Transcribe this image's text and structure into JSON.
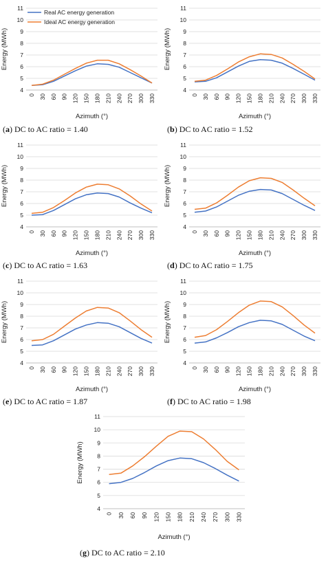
{
  "colors": {
    "real": "#4472C4",
    "ideal": "#ED7D31",
    "grid": "#D9D9D9"
  },
  "chart_data": [
    {
      "id": "a",
      "caption_letter": "a",
      "caption_text": " DC to AC ratio = 1.40",
      "type": "line",
      "xlabel": "Azimuth (°)",
      "ylabel": "Energy (MWh)",
      "x": [
        0,
        30,
        60,
        90,
        120,
        150,
        180,
        210,
        240,
        270,
        300,
        330
      ],
      "ylim": [
        4,
        11
      ],
      "yticks": [
        4,
        5,
        6,
        7,
        8,
        9,
        10,
        11
      ],
      "grid": true,
      "legend": "top-left",
      "series": [
        {
          "name": "Real AC energy generation",
          "values": [
            4.4,
            4.45,
            4.75,
            5.2,
            5.65,
            6.05,
            6.25,
            6.2,
            5.95,
            5.5,
            5.05,
            4.6
          ]
        },
        {
          "name": "Ideal AC energy generation",
          "values": [
            4.4,
            4.5,
            4.85,
            5.35,
            5.85,
            6.3,
            6.55,
            6.55,
            6.25,
            5.75,
            5.2,
            4.6
          ]
        }
      ]
    },
    {
      "id": "b",
      "caption_letter": "b",
      "caption_text": " DC to AC ratio = 1.52",
      "type": "line",
      "xlabel": "Azimuth (°)",
      "ylabel": "Energy (MWh)",
      "x": [
        0,
        30,
        60,
        90,
        120,
        150,
        180,
        210,
        240,
        270,
        300,
        330
      ],
      "ylim": [
        4,
        11
      ],
      "yticks": [
        4,
        5,
        6,
        7,
        8,
        9,
        10,
        11
      ],
      "grid": true,
      "legend": "none",
      "series": [
        {
          "name": "Real AC energy generation",
          "values": [
            4.7,
            4.75,
            5.05,
            5.55,
            6.05,
            6.45,
            6.6,
            6.55,
            6.3,
            5.85,
            5.35,
            4.85
          ]
        },
        {
          "name": "Ideal AC energy generation",
          "values": [
            4.75,
            4.85,
            5.25,
            5.8,
            6.4,
            6.85,
            7.1,
            7.05,
            6.75,
            6.2,
            5.6,
            4.95
          ]
        }
      ]
    },
    {
      "id": "c",
      "caption_letter": "c",
      "caption_text": " DC to AC ratio = 1.63",
      "type": "line",
      "xlabel": "Azimuth (°)",
      "ylabel": "Energy (MWh)",
      "x": [
        0,
        30,
        60,
        90,
        120,
        150,
        180,
        210,
        240,
        270,
        300,
        330
      ],
      "ylim": [
        4,
        11
      ],
      "yticks": [
        4,
        5,
        6,
        7,
        8,
        9,
        10,
        11
      ],
      "grid": true,
      "legend": "none",
      "series": [
        {
          "name": "Real AC energy generation",
          "values": [
            5.0,
            5.05,
            5.4,
            5.9,
            6.4,
            6.75,
            6.9,
            6.85,
            6.55,
            6.05,
            5.6,
            5.2
          ]
        },
        {
          "name": "Ideal AC energy generation",
          "values": [
            5.15,
            5.25,
            5.65,
            6.25,
            6.9,
            7.4,
            7.65,
            7.6,
            7.25,
            6.65,
            5.95,
            5.35
          ]
        }
      ]
    },
    {
      "id": "d",
      "caption_letter": "d",
      "caption_text": " DC to AC ratio = 1.75",
      "type": "line",
      "xlabel": "Azimuth (°)",
      "ylabel": "Energy (MWh)",
      "x": [
        0,
        30,
        60,
        90,
        120,
        150,
        180,
        210,
        240,
        270,
        300,
        330
      ],
      "ylim": [
        4,
        11
      ],
      "yticks": [
        4,
        5,
        6,
        7,
        8,
        9,
        10,
        11
      ],
      "grid": true,
      "legend": "none",
      "series": [
        {
          "name": "Real AC energy generation",
          "values": [
            5.25,
            5.35,
            5.7,
            6.2,
            6.7,
            7.05,
            7.2,
            7.15,
            6.85,
            6.35,
            5.85,
            5.4
          ]
        },
        {
          "name": "Ideal AC energy generation",
          "values": [
            5.5,
            5.6,
            6.05,
            6.7,
            7.4,
            7.95,
            8.2,
            8.15,
            7.8,
            7.15,
            6.45,
            5.8
          ]
        }
      ]
    },
    {
      "id": "e",
      "caption_letter": "e",
      "caption_text": " DC to AC ratio = 1.87",
      "type": "line",
      "xlabel": "Azimuth (°)",
      "ylabel": "Energy (MWh)",
      "x": [
        0,
        30,
        60,
        90,
        120,
        150,
        180,
        210,
        240,
        270,
        300,
        330
      ],
      "ylim": [
        4,
        11
      ],
      "yticks": [
        4,
        5,
        6,
        7,
        8,
        9,
        10,
        11
      ],
      "grid": true,
      "legend": "none",
      "series": [
        {
          "name": "Real AC energy generation",
          "values": [
            5.5,
            5.55,
            5.9,
            6.4,
            6.9,
            7.25,
            7.45,
            7.4,
            7.1,
            6.6,
            6.1,
            5.7
          ]
        },
        {
          "name": "Ideal AC energy generation",
          "values": [
            5.9,
            6.0,
            6.45,
            7.15,
            7.85,
            8.45,
            8.75,
            8.7,
            8.3,
            7.6,
            6.85,
            6.2
          ]
        }
      ]
    },
    {
      "id": "f",
      "caption_letter": "f",
      "caption_text": " DC to AC ratio = 1.98",
      "type": "line",
      "xlabel": "Azimuth (°)",
      "ylabel": "Energy (MWh)",
      "x": [
        0,
        30,
        60,
        90,
        120,
        150,
        180,
        210,
        240,
        270,
        300,
        330
      ],
      "ylim": [
        4,
        11
      ],
      "yticks": [
        4,
        5,
        6,
        7,
        8,
        9,
        10,
        11
      ],
      "grid": true,
      "legend": "none",
      "series": [
        {
          "name": "Real AC energy generation",
          "values": [
            5.7,
            5.8,
            6.15,
            6.6,
            7.1,
            7.45,
            7.65,
            7.6,
            7.3,
            6.8,
            6.3,
            5.9
          ]
        },
        {
          "name": "Ideal AC energy generation",
          "values": [
            6.2,
            6.35,
            6.85,
            7.55,
            8.3,
            8.95,
            9.3,
            9.25,
            8.8,
            8.05,
            7.25,
            6.55
          ]
        }
      ]
    },
    {
      "id": "g",
      "caption_letter": "g",
      "caption_text": " DC to AC ratio = 2.10",
      "type": "line",
      "xlabel": "Azimuth (°)",
      "ylabel": "Energy (MWh)",
      "x": [
        0,
        30,
        60,
        90,
        120,
        150,
        180,
        210,
        240,
        270,
        300,
        330
      ],
      "ylim": [
        4,
        11
      ],
      "yticks": [
        4,
        5,
        6,
        7,
        8,
        9,
        10,
        11
      ],
      "grid": true,
      "legend": "none",
      "series": [
        {
          "name": "Real AC energy generation",
          "values": [
            5.9,
            6.0,
            6.3,
            6.75,
            7.25,
            7.65,
            7.85,
            7.8,
            7.5,
            7.05,
            6.55,
            6.1
          ]
        },
        {
          "name": "Ideal AC energy generation",
          "values": [
            6.6,
            6.7,
            7.25,
            7.95,
            8.75,
            9.5,
            9.9,
            9.85,
            9.3,
            8.5,
            7.6,
            6.95
          ]
        }
      ]
    }
  ]
}
